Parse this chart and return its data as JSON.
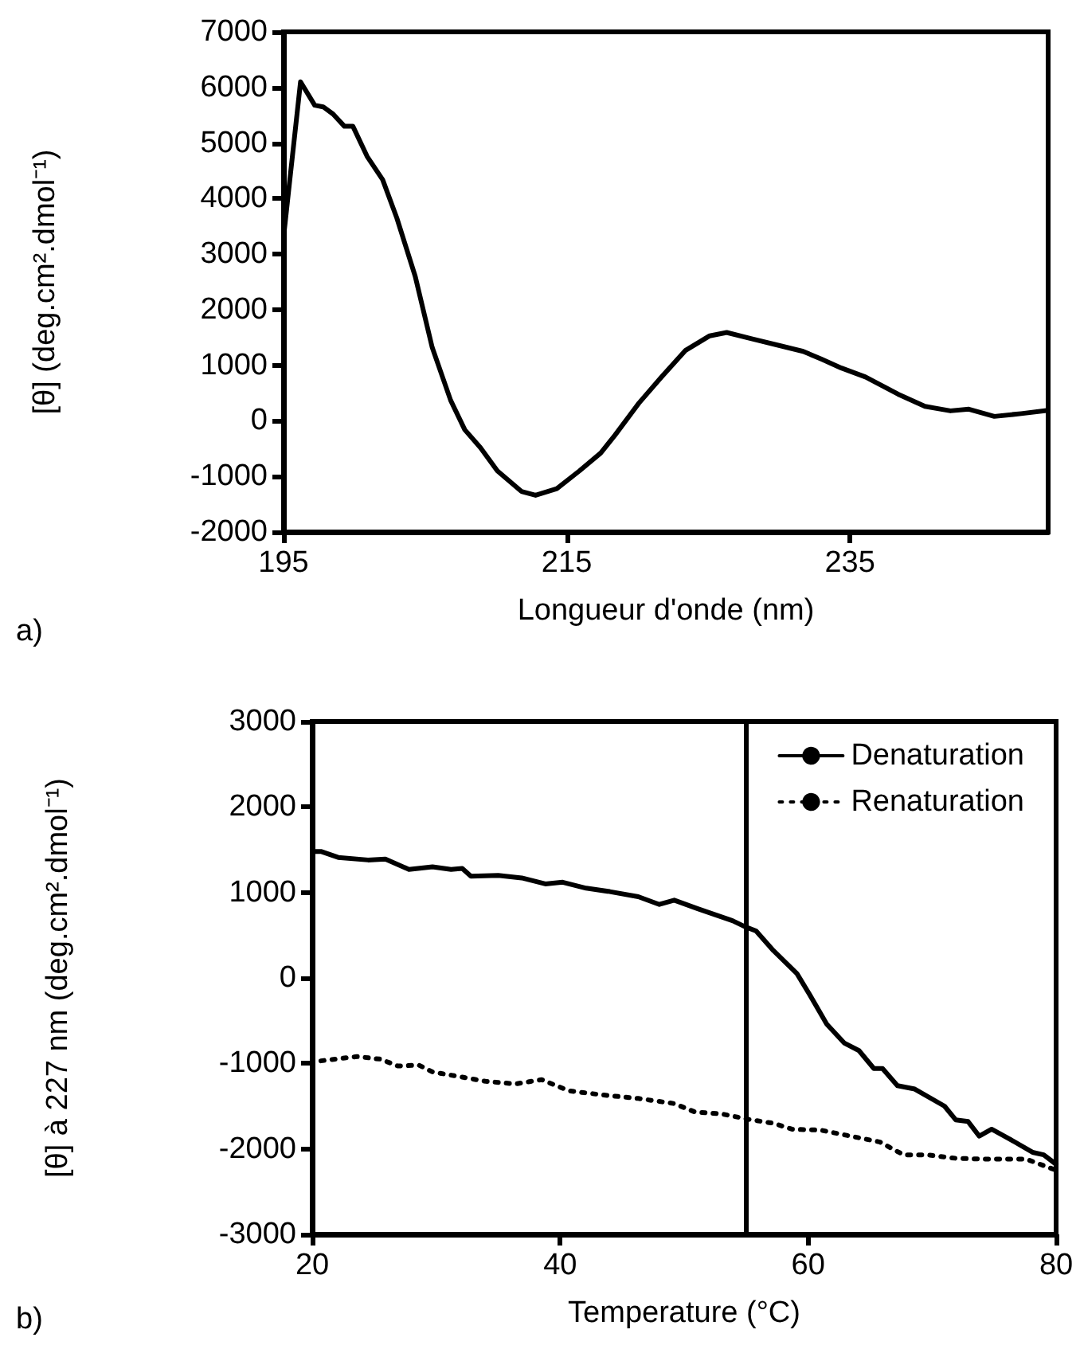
{
  "chart_data": [
    {
      "type": "line",
      "xlabel": "Longueur d'onde (nm)",
      "ylabel": "[θ] (deg.cm².dmol⁻¹)",
      "annotations": [
        "a)"
      ],
      "xlim": [
        195,
        249
      ],
      "xticks": [
        195,
        215,
        235
      ],
      "ylim": [
        -2000,
        7000
      ],
      "yticks": [
        -2000,
        -1000,
        0,
        1000,
        2000,
        3000,
        4000,
        5000,
        6000,
        7000
      ],
      "grid": false,
      "legend": false,
      "marker": "none",
      "series": [
        {
          "color": "#000000",
          "line_style": "solid",
          "x": [
            195,
            196.2,
            197.2,
            197.8,
            198.5,
            199.3,
            199.9,
            200.9,
            202,
            203,
            204.3,
            205.5,
            206.8,
            207.8,
            208.9,
            210.1,
            211.8,
            212.8,
            214.3,
            215.9,
            217.4,
            218.4,
            220.1,
            221.7,
            223.4,
            225.1,
            226.3,
            228,
            230.1,
            231.7,
            233,
            234.4,
            236.1,
            238.4,
            240.3,
            242.1,
            243.4,
            245.2,
            247.1,
            249
          ],
          "values": [
            3300,
            6100,
            5680,
            5650,
            5520,
            5300,
            5300,
            4760,
            4340,
            3650,
            2600,
            1320,
            370,
            -160,
            -480,
            -900,
            -1270,
            -1340,
            -1220,
            -900,
            -580,
            -260,
            320,
            790,
            1270,
            1530,
            1590,
            1480,
            1350,
            1250,
            1110,
            950,
            790,
            480,
            260,
            180,
            210,
            80,
            130,
            190
          ]
        }
      ]
    },
    {
      "type": "line",
      "xlabel": "Temperature (°C)",
      "ylabel": "[θ] à 227 nm (deg.cm².dmol⁻¹)",
      "annotations": [
        "b)"
      ],
      "xlim": [
        20,
        80
      ],
      "xticks": [
        20,
        40,
        60,
        80
      ],
      "ylim": [
        -3000,
        3000
      ],
      "yticks": [
        -3000,
        -2000,
        -1000,
        0,
        1000,
        2000,
        3000
      ],
      "grid": false,
      "legend": "top right",
      "marker": "none",
      "ref_lines": [
        {
          "axis": "x",
          "value": 55,
          "color": "#000000",
          "line_style": "solid"
        }
      ],
      "series": [
        {
          "name": "Denaturation",
          "color": "#000000",
          "line_style": "solid",
          "x": [
            20,
            20.7,
            22.1,
            24.5,
            25.9,
            27.8,
            29.7,
            31.2,
            32.1,
            32.8,
            35,
            36.9,
            38.8,
            40.2,
            42.1,
            44,
            46.3,
            48,
            49.2,
            51.1,
            52.5,
            53.9,
            54.9,
            55.8,
            57.2,
            59.1,
            60.1,
            61.5,
            62.9,
            64.1,
            65.3,
            66,
            67.2,
            68.6,
            71,
            71.9,
            72.9,
            73.8,
            74.8,
            76.2,
            78.1,
            79,
            80
          ],
          "values": [
            1480,
            1480,
            1410,
            1380,
            1390,
            1270,
            1300,
            1270,
            1280,
            1190,
            1200,
            1170,
            1100,
            1120,
            1050,
            1010,
            950,
            860,
            910,
            810,
            740,
            670,
            600,
            550,
            320,
            50,
            -190,
            -540,
            -760,
            -850,
            -1060,
            -1060,
            -1260,
            -1300,
            -1500,
            -1660,
            -1680,
            -1850,
            -1770,
            -1880,
            -2040,
            -2070,
            -2180
          ]
        },
        {
          "name": "Renaturation",
          "color": "#000000",
          "line_style": "dotted",
          "x": [
            20.7,
            23.6,
            25.5,
            26.9,
            28.6,
            29.7,
            32.1,
            34,
            36.4,
            38.5,
            40.7,
            43.5,
            46.3,
            49.2,
            50.9,
            53,
            55.4,
            57.2,
            58.7,
            61,
            63.4,
            65.8,
            67.7,
            69.6,
            71.9,
            74.3,
            77.6,
            80
          ],
          "values": [
            -970,
            -920,
            -950,
            -1030,
            -1020,
            -1100,
            -1160,
            -1210,
            -1240,
            -1190,
            -1320,
            -1370,
            -1410,
            -1470,
            -1570,
            -1590,
            -1660,
            -1700,
            -1770,
            -1780,
            -1850,
            -1920,
            -2070,
            -2070,
            -2110,
            -2120,
            -2120,
            -2250
          ]
        }
      ]
    }
  ]
}
